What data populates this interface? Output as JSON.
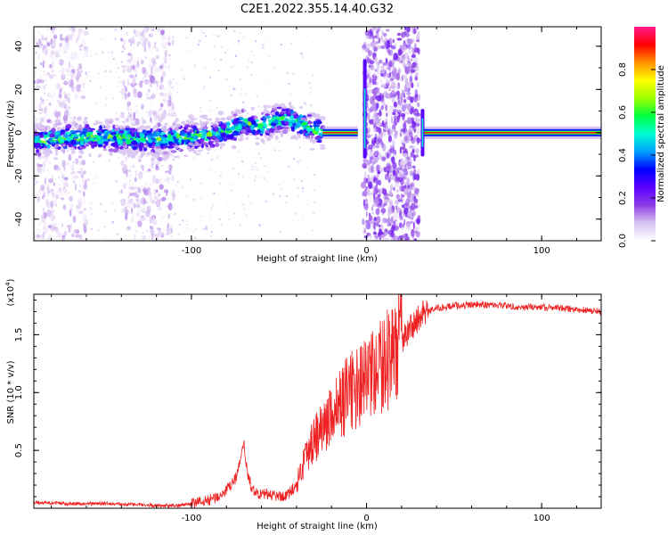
{
  "figure": {
    "title": "C2E1.2022.355.14.40.G32"
  },
  "chart_data": [
    {
      "type": "heatmap",
      "title": "",
      "xlabel": "Height of straight line (km)",
      "ylabel": "Frequency (Hz)",
      "xlim": [
        -190,
        134
      ],
      "ylim": [
        -50,
        49
      ],
      "xticks": [
        -100,
        0,
        100
      ],
      "yticks": [
        -40,
        -20,
        0,
        20,
        40
      ],
      "xtick_labels": [
        "-100",
        "0",
        "100"
      ],
      "ytick_labels": [
        "-40",
        "-20",
        "0",
        "20",
        "40"
      ],
      "grid": false,
      "colorbar": {
        "label": "Normalized spectral amplitude",
        "range": [
          0,
          1
        ],
        "ticks": [
          0.0,
          0.2,
          0.4,
          0.6,
          0.8
        ],
        "tick_labels": [
          "0.0",
          "0.2",
          "0.4",
          "0.6",
          "0.8"
        ],
        "colormap": [
          "#ffffff",
          "#d8c4f0",
          "#8c3ce6",
          "#5a00ff",
          "#0000ff",
          "#00a0ff",
          "#00ffd0",
          "#00ff40",
          "#a0ff00",
          "#ffff00",
          "#ff9000",
          "#ff0000",
          "#ff1a8c"
        ]
      },
      "ridge": {
        "x": [
          -190,
          -175,
          -160,
          -145,
          -130,
          -115,
          -100,
          -90,
          -80,
          -70,
          -60,
          -50,
          -45,
          -40,
          -35,
          -30,
          -25,
          -20,
          -15,
          -10,
          -5,
          0,
          30,
          40,
          60,
          80,
          100,
          120,
          134
        ],
        "y": [
          -4,
          -3,
          -2,
          -2,
          -3,
          -3,
          -2,
          -1,
          1,
          4,
          3,
          6,
          7,
          5,
          3,
          1,
          0,
          0,
          0,
          0,
          0,
          0,
          0,
          0,
          0,
          0,
          0,
          0,
          0
        ]
      },
      "broadband_bands": [
        [
          -190,
          -160
        ],
        [
          -140,
          -110
        ],
        [
          -2,
          30
        ]
      ]
    },
    {
      "type": "line",
      "title": "",
      "xlabel": "Height of straight line (km)",
      "ylabel": "SNR (10 * v/v)",
      "y_multiplier": "(x10^4)",
      "xlim": [
        -190,
        134
      ],
      "ylim": [
        0,
        1.85
      ],
      "xticks": [
        -100,
        0,
        100
      ],
      "yticks": [
        0.5,
        1.0,
        1.5
      ],
      "xtick_labels": [
        "-100",
        "0",
        "100"
      ],
      "ytick_labels": [
        "0.5",
        "1.0",
        "1.5"
      ],
      "grid": false,
      "series_color": "#ee2222",
      "series": [
        {
          "x": [
            -190,
            -170,
            -150,
            -130,
            -110,
            -100,
            -90,
            -85,
            -80,
            -75,
            -72,
            -70,
            -68,
            -65,
            -60,
            -55,
            -50,
            -45,
            -40,
            -38,
            -35,
            -32,
            -30,
            -25,
            -20,
            -15,
            -10,
            -5,
            0,
            5,
            10,
            15,
            20,
            25,
            30,
            35,
            40,
            50,
            60,
            70,
            80,
            90,
            100,
            110,
            120,
            134
          ],
          "y": [
            0.05,
            0.04,
            0.04,
            0.03,
            0.02,
            0.04,
            0.07,
            0.1,
            0.15,
            0.25,
            0.4,
            0.55,
            0.3,
            0.15,
            0.12,
            0.12,
            0.1,
            0.12,
            0.2,
            0.3,
            0.45,
            0.55,
            0.6,
            0.7,
            0.8,
            0.9,
            1.0,
            1.05,
            1.1,
            1.15,
            1.25,
            1.35,
            1.45,
            1.55,
            1.65,
            1.7,
            1.73,
            1.75,
            1.76,
            1.76,
            1.75,
            1.74,
            1.74,
            1.73,
            1.72,
            1.7
          ]
        }
      ]
    }
  ]
}
